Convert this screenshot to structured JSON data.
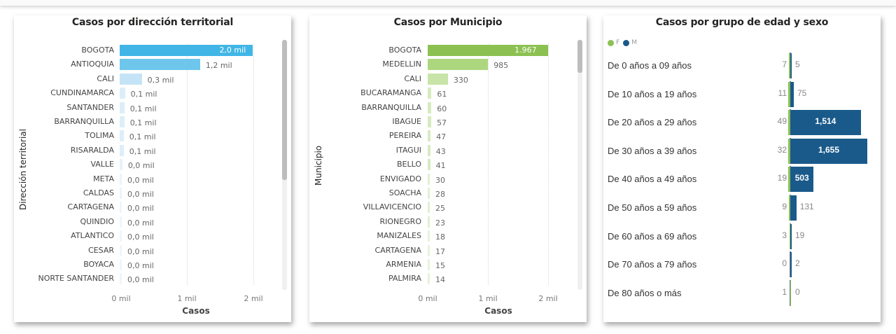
{
  "chart_data": [
    {
      "type": "bar",
      "orientation": "horizontal",
      "title": "Casos por dirección territorial",
      "xlabel": "Casos",
      "ylabel": "Dirección territorial",
      "xlim": [
        0,
        2000
      ],
      "x_ticks": [
        "0 mil",
        "1 mil",
        "2 mil"
      ],
      "grid": true,
      "categories": [
        "BOGOTA",
        "ANTIOQUIA",
        "CALI",
        "CUNDINAMARCA",
        "SANTANDER",
        "BARRANQUILLA",
        "TOLIMA",
        "RISARALDA",
        "VALLE",
        "META",
        "CALDAS",
        "CARTAGENA",
        "QUINDIO",
        "ATLANTICO",
        "CESAR",
        "BOYACA",
        "NORTE SANTANDER"
      ],
      "values": [
        1990,
        1200,
        330,
        80,
        70,
        70,
        60,
        60,
        40,
        30,
        30,
        20,
        20,
        20,
        20,
        20,
        20
      ],
      "labels": [
        "2,0 mil",
        "1,2 mil",
        "0,3 mil",
        "0,1 mil",
        "0,1 mil",
        "0,1 mil",
        "0,1 mil",
        "0,1 mil",
        "0,0 mil",
        "0,0 mil",
        "0,0 mil",
        "0,0 mil",
        "0,0 mil",
        "0,0 mil",
        "0,0 mil",
        "0,0 mil",
        "0,0 mil"
      ],
      "colors": [
        "#41b6e6",
        "#6ec6ec",
        "#c5e3f6",
        "#dceef9",
        "#dceef9",
        "#dceef9",
        "#dceef9",
        "#dceef9",
        "#e6f2fb",
        "#eaf4fb",
        "#eaf4fb",
        "#eef6fc",
        "#eef6fc",
        "#eef6fc",
        "#eef6fc",
        "#eef6fc",
        "#eef6fc"
      ]
    },
    {
      "type": "bar",
      "orientation": "horizontal",
      "title": "Casos por Municipio",
      "xlabel": "Casos",
      "ylabel": "Municipio",
      "xlim": [
        0,
        2000
      ],
      "x_ticks": [
        "0 mil",
        "1 mil",
        "2 mil"
      ],
      "grid": true,
      "categories": [
        "BOGOTA",
        "MEDELLIN",
        "CALI",
        "BUCARAMANGA",
        "BARRANQUILLA",
        "IBAGUE",
        "PEREIRA",
        "ITAGUI",
        "BELLO",
        "ENVIGADO",
        "SOACHA",
        "VILLAVICENCIO",
        "RIONEGRO",
        "MANIZALES",
        "CARTAGENA",
        "ARMENIA",
        "PALMIRA"
      ],
      "values": [
        1967,
        985,
        330,
        61,
        60,
        57,
        47,
        43,
        41,
        30,
        28,
        25,
        23,
        18,
        17,
        15,
        14
      ],
      "labels": [
        "1.967",
        "985",
        "330",
        "61",
        "60",
        "57",
        "47",
        "43",
        "41",
        "30",
        "28",
        "25",
        "23",
        "18",
        "17",
        "15",
        "14"
      ],
      "colors": [
        "#8cc152",
        "#add77f",
        "#c8e4a8",
        "#d6ebbf",
        "#d6ebbf",
        "#d6ebbf",
        "#d6ebbf",
        "#d6ebbf",
        "#d6ebbf",
        "#e0f0cf",
        "#e0f0cf",
        "#e0f0cf",
        "#e0f0cf",
        "#e6f3d9",
        "#e6f3d9",
        "#e6f3d9",
        "#e6f3d9"
      ]
    },
    {
      "type": "bar",
      "orientation": "horizontal",
      "subtype": "population-pyramid",
      "title": "Casos por grupo de edad y sexo",
      "legend": [
        {
          "name": "F",
          "color": "#8cc152"
        },
        {
          "name": "M",
          "color": "#1a5a8a"
        }
      ],
      "legend_position": "top-left",
      "categories": [
        "De 0 años a 09 años",
        "De 10 años a 19 años",
        "De 20 años a 29 años",
        "De 30 años a 39 años",
        "De 40 años a 49 años",
        "De 50 años a 59 años",
        "De 60 años a 69 años",
        "De 70 años a 79 años",
        "De 80 años o más"
      ],
      "series": [
        {
          "name": "F",
          "values": [
            7,
            11,
            49,
            32,
            19,
            9,
            3,
            0,
            1
          ],
          "labels": [
            "7",
            "11",
            "49",
            "32",
            "19",
            "9",
            "3",
            "0",
            "1"
          ]
        },
        {
          "name": "M",
          "values": [
            5,
            75,
            1514,
            1655,
            503,
            131,
            19,
            2,
            0
          ],
          "labels": [
            "5",
            "75",
            "1,514",
            "1,655",
            "503",
            "131",
            "19",
            "2",
            "0"
          ]
        }
      ]
    }
  ]
}
